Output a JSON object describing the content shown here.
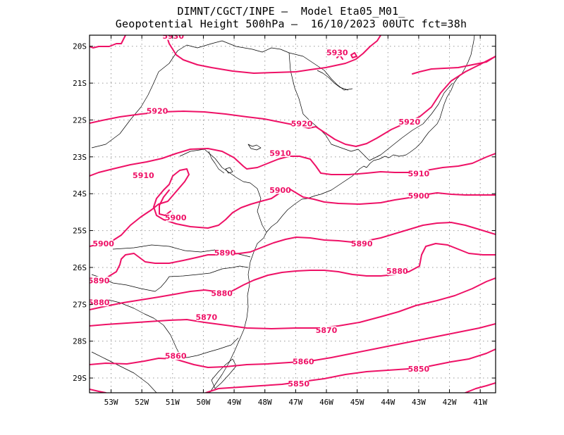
{
  "title": {
    "line1": "DIMNT/CGCT/INPE –  Model Eta05_M01_",
    "line2": "Geopotential Height 500hPa –  16/10/2023 00UTC fct=38h"
  },
  "colors": {
    "contour": "#ee1166",
    "contour_label": "#ee1166",
    "coastline": "#000000",
    "grid": "#999999",
    "frame": "#000000"
  },
  "map": {
    "lon_range": [
      -53.7,
      -40.5
    ],
    "lat_range": [
      -29.4,
      -19.7
    ],
    "grid": "dotted",
    "x_ticks": [
      "53W",
      "52W",
      "51W",
      "50W",
      "49W",
      "48W",
      "47W",
      "46W",
      "45W",
      "44W",
      "43W",
      "42W",
      "41W"
    ],
    "y_ticks": [
      "20S",
      "21S",
      "22S",
      "23S",
      "24S",
      "25S",
      "26S",
      "27S",
      "28S",
      "29S"
    ]
  },
  "contour_labels": [
    {
      "text": "5930",
      "lon": -50.98,
      "lat": -19.72
    },
    {
      "text": "5930",
      "lon": -45.65,
      "lat": -20.17
    },
    {
      "text": "5920",
      "lon": -51.5,
      "lat": -21.75
    },
    {
      "text": "5920",
      "lon": -46.8,
      "lat": -22.1
    },
    {
      "text": "5920",
      "lon": -43.3,
      "lat": -22.05
    },
    {
      "text": "5910",
      "lon": -51.95,
      "lat": -23.5
    },
    {
      "text": "5910",
      "lon": -47.5,
      "lat": -22.9
    },
    {
      "text": "5910",
      "lon": -43.0,
      "lat": -23.45
    },
    {
      "text": "5900",
      "lon": -50.9,
      "lat": -24.65
    },
    {
      "text": "5900",
      "lon": -47.5,
      "lat": -23.9
    },
    {
      "text": "5900",
      "lon": -43.0,
      "lat": -24.05
    },
    {
      "text": "5900",
      "lon": -53.25,
      "lat": -25.35
    },
    {
      "text": "5890",
      "lon": -49.3,
      "lat": -25.6
    },
    {
      "text": "5890",
      "lon": -44.85,
      "lat": -25.35
    },
    {
      "text": "5890",
      "lon": -53.4,
      "lat": -26.35
    },
    {
      "text": "5880",
      "lon": -49.4,
      "lat": -26.7
    },
    {
      "text": "5880",
      "lon": -53.4,
      "lat": -26.95
    },
    {
      "text": "5880",
      "lon": -43.7,
      "lat": -26.1
    },
    {
      "text": "5870",
      "lon": -49.9,
      "lat": -27.35
    },
    {
      "text": "5870",
      "lon": -46.0,
      "lat": -27.7
    },
    {
      "text": "5860",
      "lon": -50.9,
      "lat": -28.4
    },
    {
      "text": "5860",
      "lon": -46.75,
      "lat": -28.55
    },
    {
      "text": "5850",
      "lon": -46.9,
      "lat": -29.15
    },
    {
      "text": "5850",
      "lon": -43.0,
      "lat": -28.75
    }
  ]
}
